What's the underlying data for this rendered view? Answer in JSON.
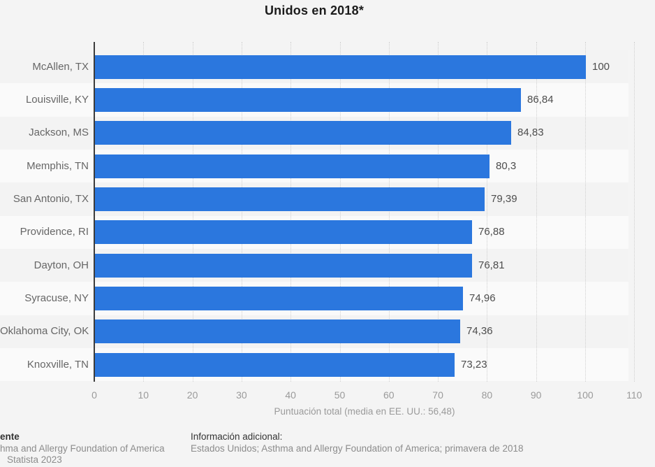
{
  "title": "Unidos en 2018*",
  "chart_data": {
    "type": "bar",
    "orientation": "horizontal",
    "title": "Unidos en 2018*",
    "categories": [
      "McAllen, TX",
      "Louisville, KY",
      "Jackson, MS",
      "Memphis, TN",
      "San Antonio, TX",
      "Providence, RI",
      "Dayton, OH",
      "Syracuse, NY",
      "Oklahoma City, OK",
      "Knoxville, TN"
    ],
    "values": [
      100,
      86.84,
      84.83,
      80.3,
      79.39,
      76.88,
      76.81,
      74.96,
      74.36,
      73.23
    ],
    "value_labels": [
      "100",
      "86,84",
      "84,83",
      "80,3",
      "79,39",
      "76,88",
      "76,81",
      "74,96",
      "74,36",
      "73,23"
    ],
    "xlabel": "Puntuación total (media en EE. UU.: 56,48)",
    "xlim": [
      0,
      110
    ],
    "xticks": [
      0,
      10,
      20,
      30,
      40,
      50,
      60,
      70,
      80,
      90,
      100,
      110
    ],
    "grid": "vertical-dotted",
    "legend": "none",
    "bar_color": "#2b77de"
  },
  "colors": {
    "background": "#f4f4f4",
    "stripe_dark": "#f3f3f3",
    "stripe_light": "#fafafa",
    "bar": "#2b77de",
    "axis_line": "#3c3c3c",
    "gridline": "#cfcfcf",
    "tick_label": "#9a9a9a",
    "category_label": "#666666",
    "value_label": "#4d4d4d",
    "title": "#1c1c1c"
  },
  "footer": {
    "source_block": {
      "line1": "ente",
      "line2": "hma and Allergy Foundation of America",
      "line3": "Statista 2023"
    },
    "info_block": {
      "heading": "Información adicional:",
      "text": "Estados Unidos; Asthma and Allergy Foundation of America; primavera de 2018"
    }
  }
}
